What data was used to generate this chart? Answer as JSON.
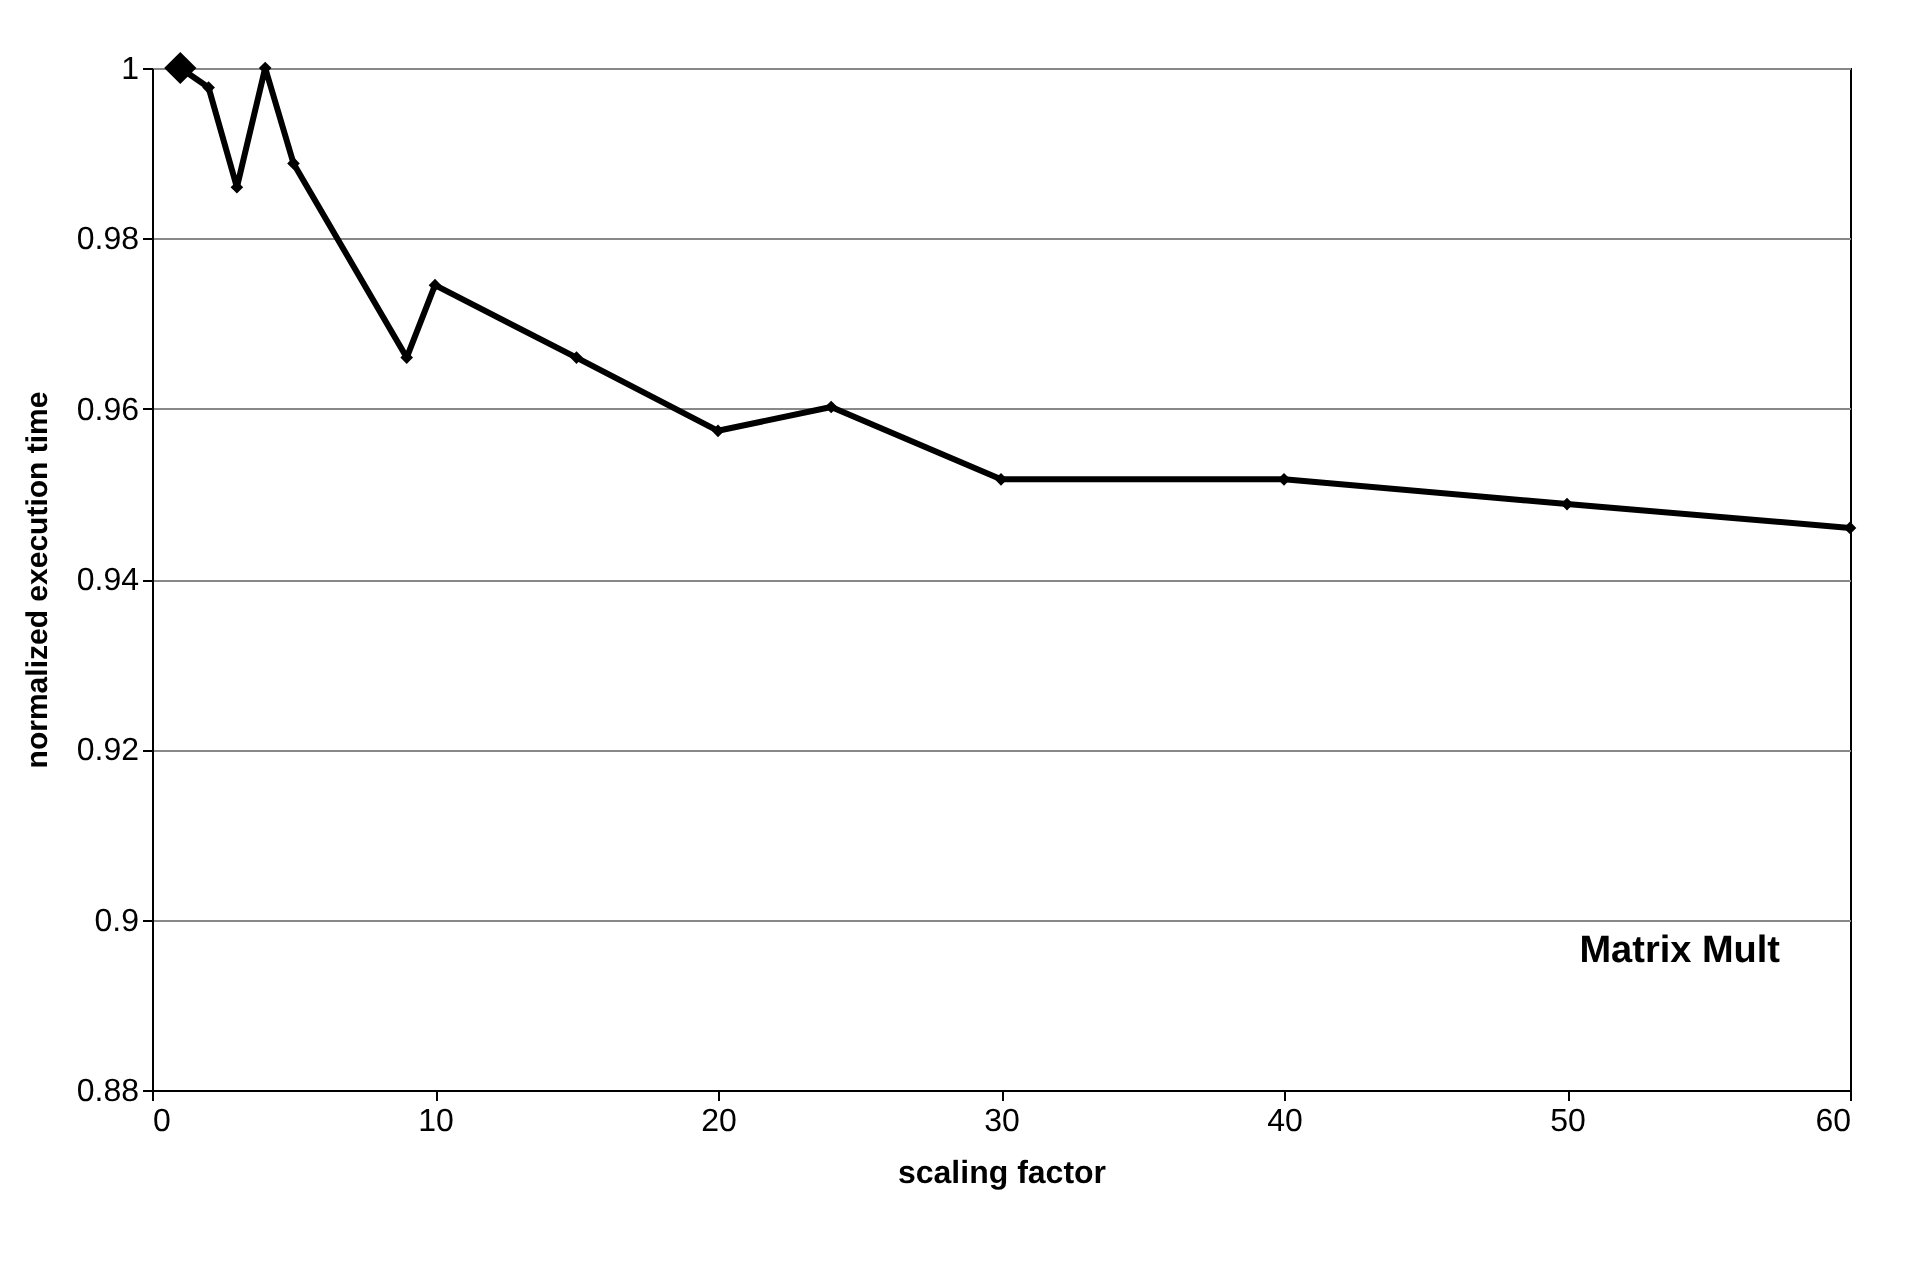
{
  "chart_data": {
    "type": "line",
    "xlabel": "scaling factor",
    "ylabel": "normalized execution time",
    "x": [
      1,
      2,
      3,
      4,
      5,
      9,
      10,
      15,
      20,
      24,
      30,
      40,
      50,
      60
    ],
    "series": [
      {
        "color": "#000000",
        "values": [
          1.0,
          0.9977,
          0.986,
          1.0,
          0.9888,
          0.966,
          0.9745,
          0.966,
          0.9574,
          0.9602,
          0.9517,
          0.9517,
          0.9488,
          0.946
        ]
      },
      {
        "type": "scatter",
        "color": "#000000",
        "x": [
          1
        ],
        "values": [
          1.0
        ]
      }
    ],
    "xlim": [
      0,
      60
    ],
    "xticks": [
      0,
      10,
      20,
      30,
      40,
      50,
      60
    ],
    "ylim": [
      0.88,
      1
    ],
    "yticks": [
      0.88,
      0.9,
      0.92,
      0.94,
      0.96,
      0.98,
      1
    ],
    "grid": "y",
    "marker": "diamond",
    "line_style": "solid",
    "annotations": [
      "Matrix Mult"
    ]
  }
}
